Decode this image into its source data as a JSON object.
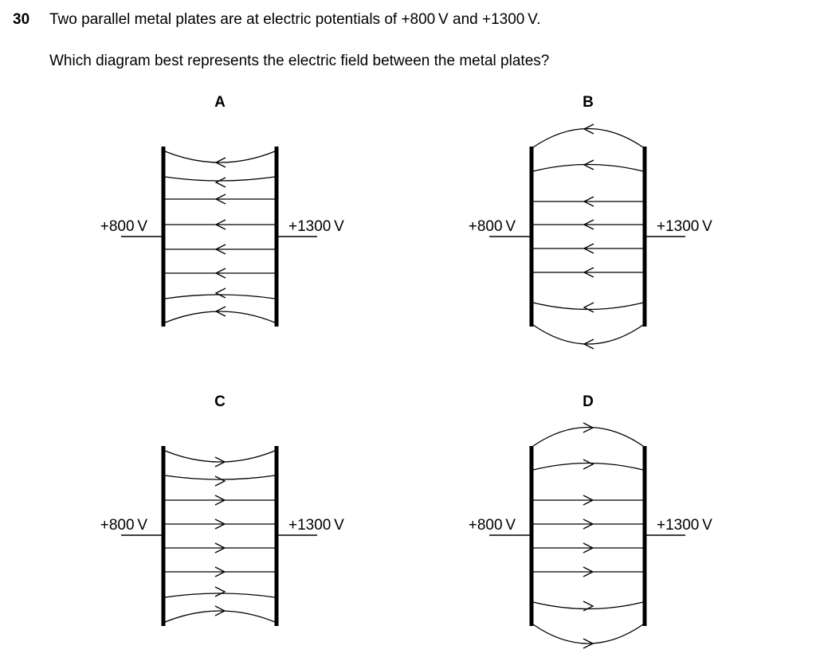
{
  "question": {
    "number": "30",
    "text": "Two parallel metal plates are at electric potentials of +800 V and +1300 V.",
    "prompt": "Which diagram best represents the electric field between the metal plates?"
  },
  "options": [
    {
      "letter": "A",
      "left_label": "+800 V",
      "right_label": "+1300 V",
      "arrow_direction": "left",
      "line_shape": "concave"
    },
    {
      "letter": "B",
      "left_label": "+800 V",
      "right_label": "+1300 V",
      "arrow_direction": "left",
      "line_shape": "convex"
    },
    {
      "letter": "C",
      "left_label": "+800 V",
      "right_label": "+1300 V",
      "arrow_direction": "right",
      "line_shape": "concave"
    },
    {
      "letter": "D",
      "left_label": "+800 V",
      "right_label": "+1300 V",
      "arrow_direction": "right",
      "line_shape": "convex"
    }
  ],
  "colors": {
    "ink": "#000000",
    "background": "#ffffff"
  }
}
